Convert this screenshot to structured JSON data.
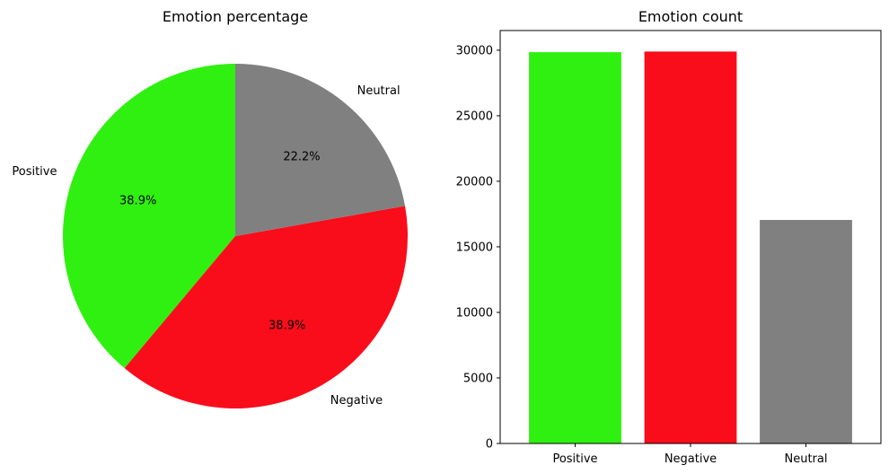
{
  "chart_data": [
    {
      "type": "pie",
      "title": "Emotion percentage",
      "labels": [
        "Positive",
        "Negative",
        "Neutral"
      ],
      "values": [
        38.9,
        38.9,
        22.2
      ],
      "pct_labels": [
        "38.9%",
        "38.9%",
        "22.2%"
      ],
      "colors": [
        "#2ff010",
        "#f90d1b",
        "#808080"
      ],
      "start_angle_deg": 90,
      "direction": "counterclockwise"
    },
    {
      "type": "bar",
      "title": "Emotion count",
      "categories": [
        "Positive",
        "Negative",
        "Neutral"
      ],
      "values": [
        29850,
        29900,
        17050
      ],
      "colors": [
        "#2ff010",
        "#f90d1b",
        "#808080"
      ],
      "xlabel": "",
      "ylabel": "",
      "ylim": [
        0,
        31500
      ],
      "yticks": [
        0,
        5000,
        10000,
        15000,
        20000,
        25000,
        30000
      ],
      "grid": false
    }
  ]
}
